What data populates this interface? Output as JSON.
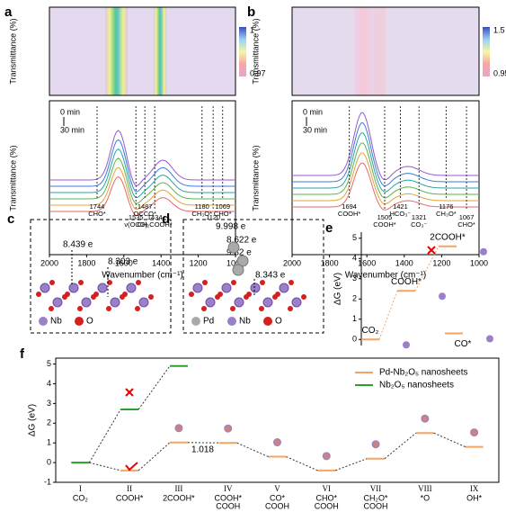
{
  "panels": {
    "a": {
      "letter": "a",
      "ylabel_top": "Transmittance (%)",
      "ylabel": "Transmittance (%)",
      "xlabel": "Wavenumber (cm⁻¹)",
      "colorbar": [
        1,
        0.97
      ],
      "xlim": [
        2000,
        1000
      ],
      "xticks": [
        2000,
        1800,
        1600,
        1400,
        1200,
        1000
      ],
      "time": [
        "0 min",
        "30 min"
      ],
      "peaks": [
        {
          "wavenumber": 1744,
          "species": "CHO*"
        },
        {
          "wavenumber": 1535,
          "species": "ν(OCO)"
        },
        {
          "wavenumber": 1487,
          "species": "OCCO*"
        },
        {
          "wavenumber": 1434,
          "species": "CH₂COOH*"
        },
        {
          "wavenumber": 1180,
          "species": "CH₃O*"
        },
        {
          "wavenumber": 1120,
          "species": ""
        },
        {
          "wavenumber": 1069,
          "species": "CHO*"
        }
      ]
    },
    "b": {
      "letter": "b",
      "ylabel_top": "Transmittance (%)",
      "ylabel": "Transmittance (%)",
      "xlabel": "Wavenumber (cm⁻¹)",
      "colorbar": [
        1.5,
        0.95
      ],
      "xlim": [
        2000,
        1000
      ],
      "xticks": [
        2000,
        1800,
        1600,
        1400,
        1200,
        1000
      ],
      "time": [
        "0 min",
        "30 min"
      ],
      "peaks": [
        {
          "wavenumber": 1694,
          "species": "COOH*"
        },
        {
          "wavenumber": 1505,
          "species": "COOH*"
        },
        {
          "wavenumber": 1421,
          "species": "HCO₃⁻"
        },
        {
          "wavenumber": 1321,
          "species": "CO₃⁻"
        },
        {
          "wavenumber": 1176,
          "species": "CH₃O*"
        },
        {
          "wavenumber": 1067,
          "species": "CHO*"
        }
      ]
    },
    "c": {
      "letter": "c",
      "charges": [
        "8.439 e",
        "8.303 e"
      ],
      "legend": [
        "Nb",
        "O"
      ]
    },
    "d": {
      "letter": "d",
      "charges": [
        "9.998 e",
        "8.622 e",
        "9.82 e",
        "8.343 e"
      ],
      "legend": [
        "Pd",
        "Nb",
        "O"
      ]
    }
  },
  "chart_data": [
    {
      "type": "level",
      "letter": "e",
      "ylabel": "ΔG (eV)",
      "categories": [
        "CO₂",
        "COOH*",
        "2COOH*",
        "CO*"
      ],
      "values": [
        0,
        2.4,
        4.6,
        0.3
      ],
      "color": "#f4a460",
      "ylim": [
        -0.3,
        5.3
      ],
      "yticks": [
        0,
        1,
        2,
        3,
        4,
        5
      ]
    },
    {
      "type": "level",
      "letter": "f",
      "ylabel": "ΔG (eV)",
      "ylim": [
        -1,
        5.3
      ],
      "yticks": [
        -1,
        0,
        1,
        2,
        3,
        4,
        5
      ],
      "categories": [
        "I",
        "II",
        "III",
        "IV",
        "V",
        "VI",
        "VII",
        "VIII",
        "IX"
      ],
      "species": [
        [
          "CO₂"
        ],
        [
          "COOH*"
        ],
        [
          "2COOH*"
        ],
        [
          "COOH*",
          "COOH"
        ],
        [
          "CO*",
          "COOH"
        ],
        [
          "CHO*",
          "COOH"
        ],
        [
          "CH₂O*",
          "COOH"
        ],
        [
          "*O"
        ],
        [
          "OH*"
        ]
      ],
      "series": [
        {
          "name": "Pd-Nb₂O₅ nanosheets",
          "color": "#f4a460",
          "values": [
            0,
            -0.4,
            1.018,
            1.0,
            0.3,
            -0.4,
            0.2,
            1.5,
            0.8
          ]
        },
        {
          "name": "Nb₂O₅ nanosheets",
          "color": "#2ca02c",
          "values": [
            0,
            2.7,
            4.9,
            null,
            null,
            null,
            null,
            null,
            null
          ]
        }
      ],
      "annotations": [
        "1.018"
      ]
    }
  ]
}
